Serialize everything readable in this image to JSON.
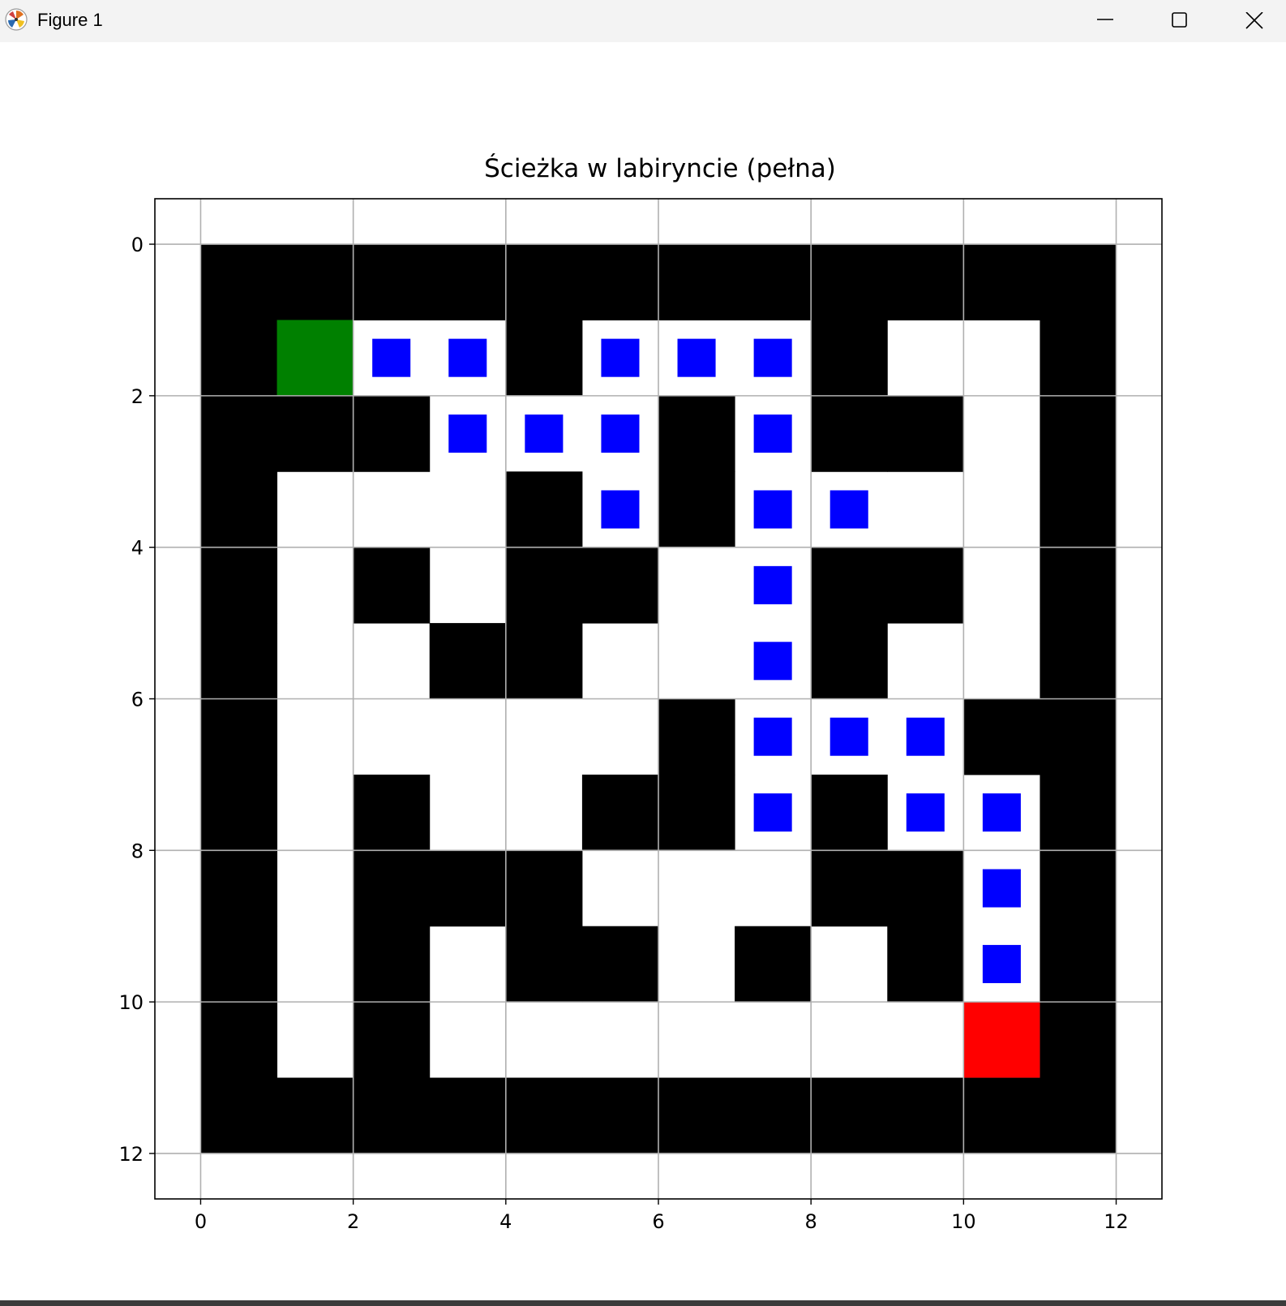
{
  "window": {
    "title": "Figure 1",
    "controls": {
      "minimize": "minimize",
      "maximize": "maximize",
      "close": "close"
    }
  },
  "colors": {
    "wall": "#000000",
    "open": "#ffffff",
    "start": "#008000",
    "end": "#ff0000",
    "path": "#0000ff",
    "grid": "#b0b0b0"
  },
  "chart_data": {
    "type": "heatmap",
    "title": "Ścieżka w labiryncie (pełna)",
    "xlim": [
      -0.6,
      12.6
    ],
    "ylim": [
      12.6,
      -0.6
    ],
    "xticks": [
      0,
      2,
      4,
      6,
      8,
      10,
      12
    ],
    "yticks": [
      0,
      2,
      4,
      6,
      8,
      10,
      12
    ],
    "grid": true,
    "maze": [
      [
        1,
        1,
        1,
        1,
        1,
        1,
        1,
        1,
        1,
        1,
        1,
        1
      ],
      [
        1,
        0,
        0,
        0,
        1,
        0,
        0,
        0,
        1,
        0,
        0,
        1
      ],
      [
        1,
        1,
        1,
        0,
        0,
        0,
        1,
        0,
        1,
        1,
        0,
        1
      ],
      [
        1,
        0,
        0,
        0,
        1,
        0,
        1,
        0,
        0,
        0,
        0,
        1
      ],
      [
        1,
        0,
        1,
        0,
        1,
        1,
        0,
        0,
        1,
        1,
        0,
        1
      ],
      [
        1,
        0,
        0,
        1,
        1,
        0,
        0,
        0,
        1,
        0,
        0,
        1
      ],
      [
        1,
        0,
        0,
        0,
        0,
        0,
        1,
        0,
        0,
        0,
        1,
        1
      ],
      [
        1,
        0,
        1,
        0,
        0,
        1,
        1,
        0,
        1,
        0,
        0,
        1
      ],
      [
        1,
        0,
        1,
        1,
        1,
        0,
        0,
        0,
        1,
        1,
        0,
        1
      ],
      [
        1,
        0,
        1,
        0,
        1,
        1,
        0,
        1,
        0,
        1,
        0,
        1
      ],
      [
        1,
        0,
        1,
        0,
        0,
        0,
        0,
        0,
        0,
        0,
        0,
        1
      ],
      [
        1,
        1,
        1,
        1,
        1,
        1,
        1,
        1,
        1,
        1,
        1,
        1
      ]
    ],
    "start": {
      "row": 1,
      "col": 1
    },
    "end": {
      "row": 10,
      "col": 10
    },
    "path": [
      [
        1,
        2
      ],
      [
        1,
        3
      ],
      [
        1,
        5
      ],
      [
        1,
        6
      ],
      [
        1,
        7
      ],
      [
        2,
        3
      ],
      [
        2,
        4
      ],
      [
        2,
        5
      ],
      [
        2,
        7
      ],
      [
        3,
        5
      ],
      [
        3,
        7
      ],
      [
        3,
        8
      ],
      [
        4,
        7
      ],
      [
        5,
        7
      ],
      [
        6,
        7
      ],
      [
        6,
        8
      ],
      [
        6,
        9
      ],
      [
        7,
        7
      ],
      [
        7,
        9
      ],
      [
        7,
        10
      ],
      [
        8,
        10
      ],
      [
        9,
        10
      ]
    ]
  }
}
